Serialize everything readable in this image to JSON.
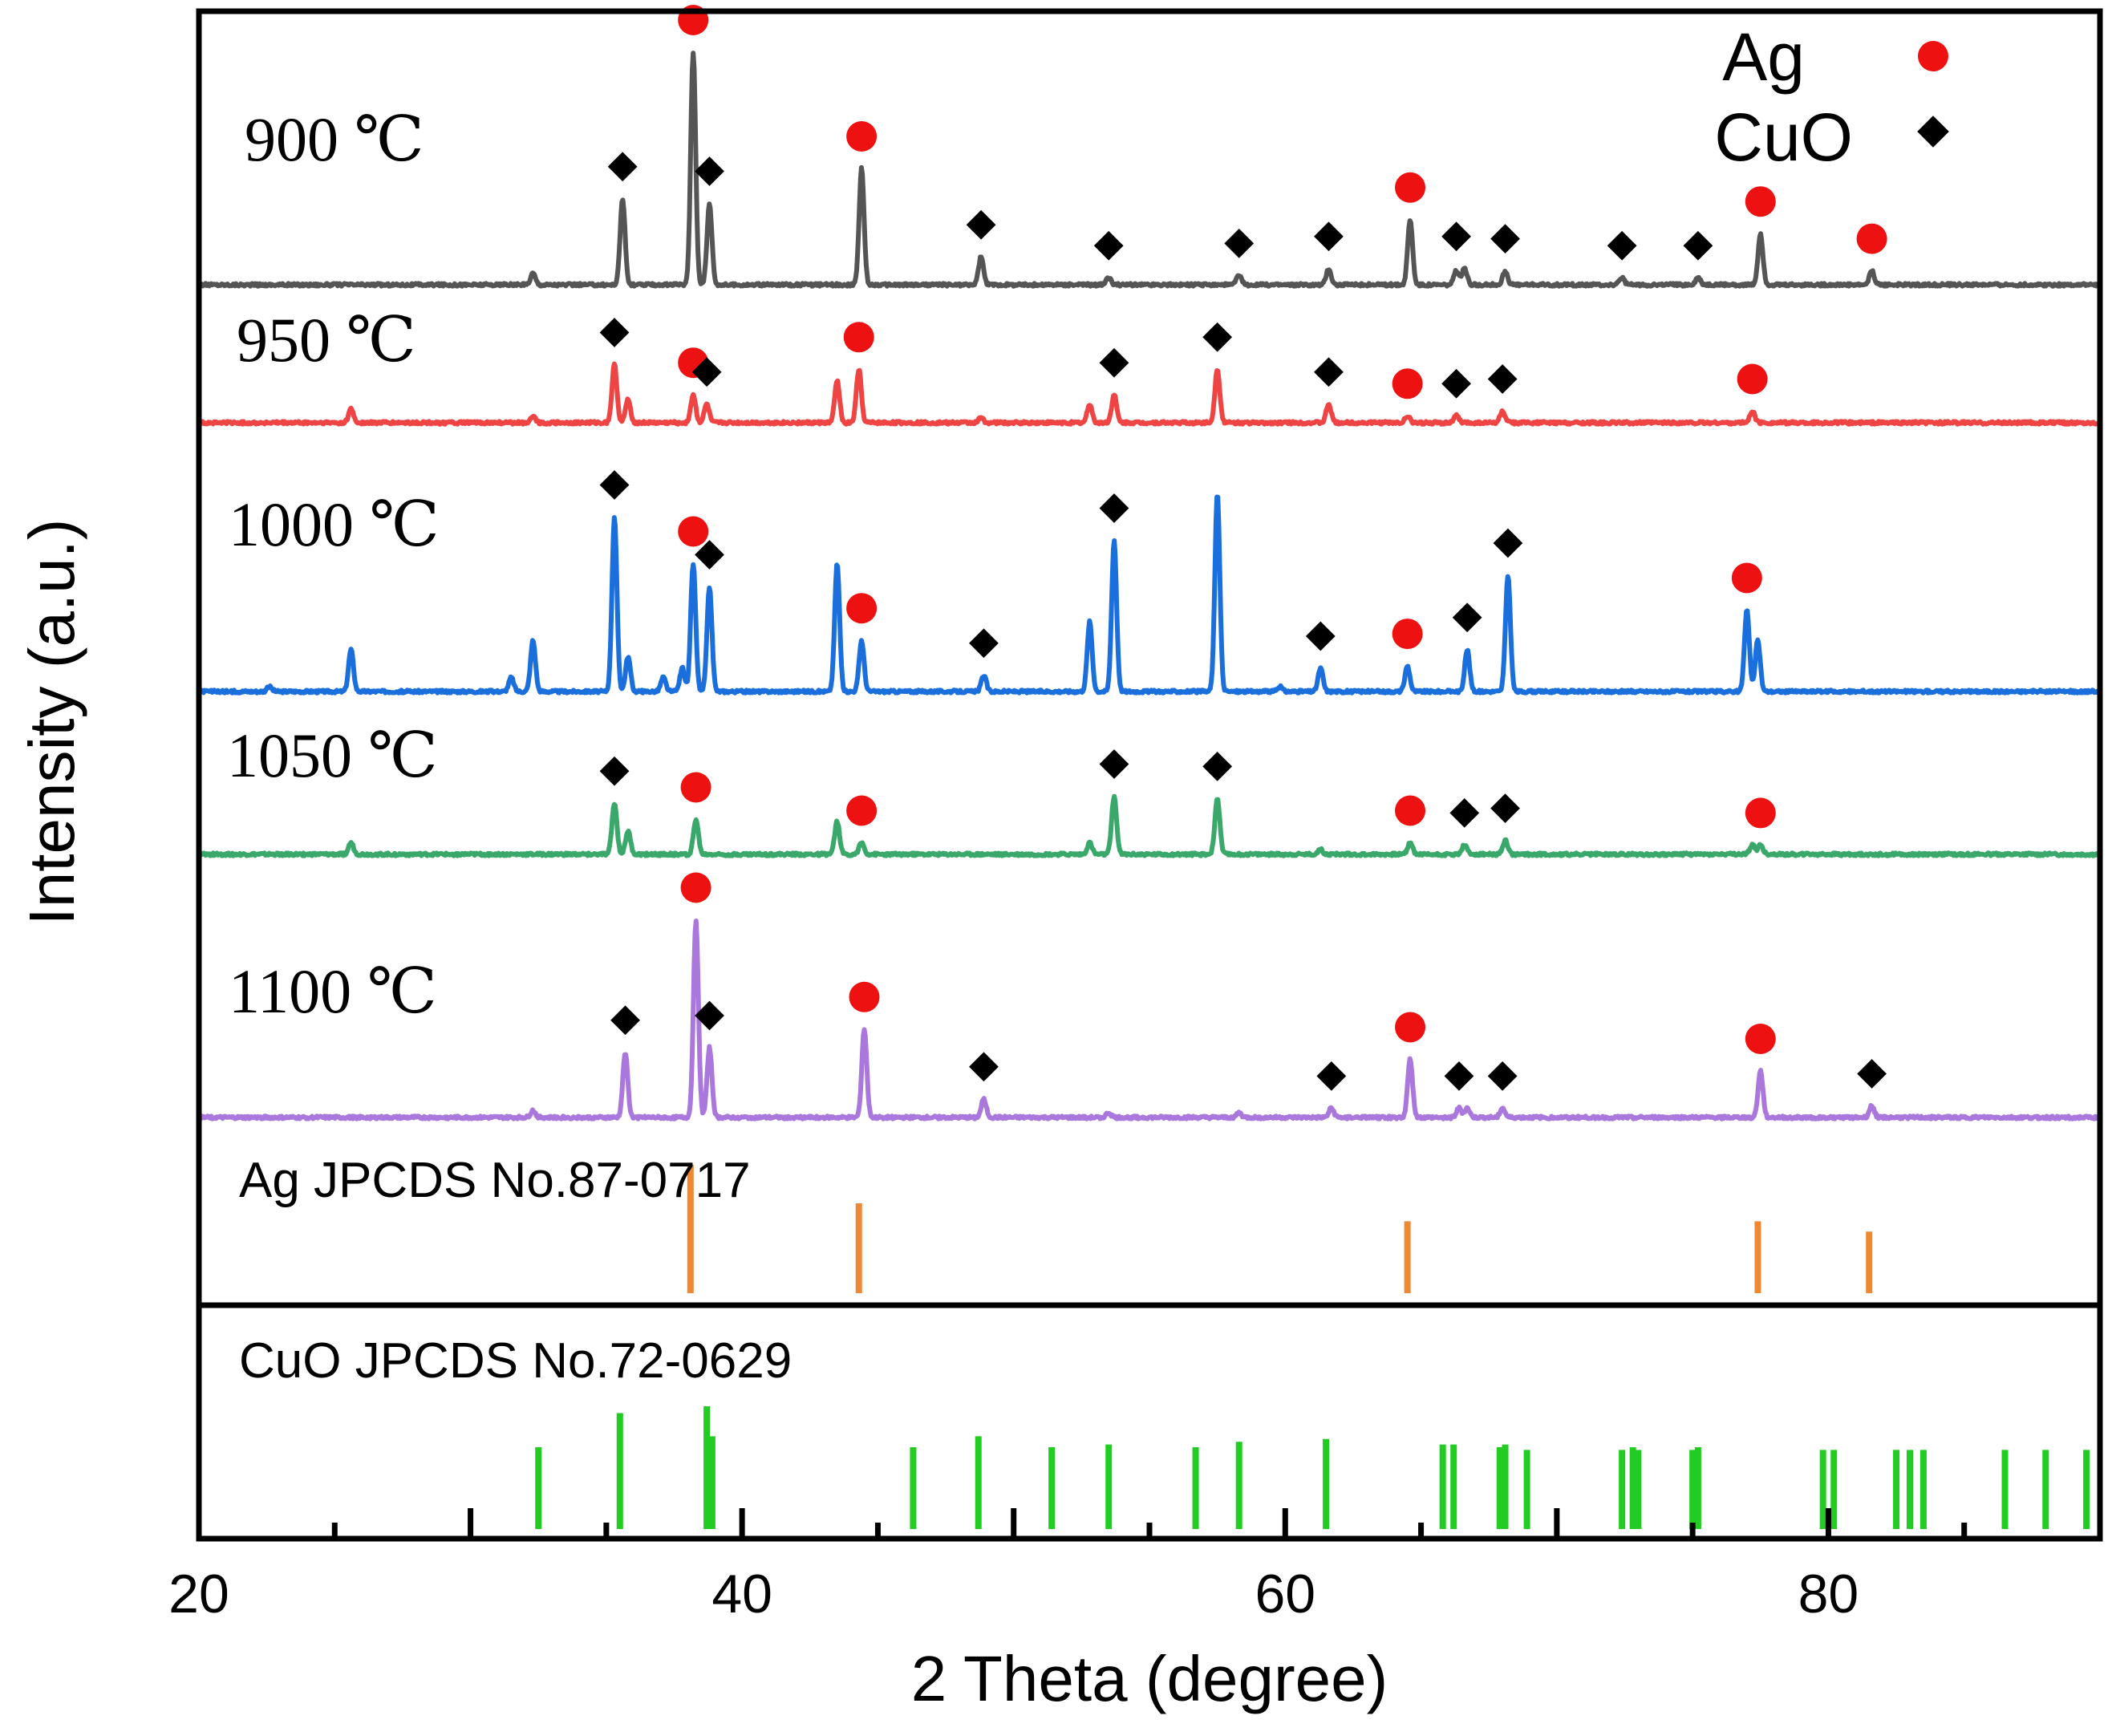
{
  "chart_data": {
    "type": "line",
    "title": "",
    "xlabel": "2 Theta (degree)",
    "ylabel": "Intensity (a.u.)",
    "xlim": [
      20,
      90
    ],
    "x_ticks": [
      20,
      40,
      60,
      80
    ],
    "x_tick_labels": [
      "20",
      "40",
      "60",
      "80"
    ],
    "legend": {
      "placement": "top-right",
      "entries": [
        {
          "label": "Ag",
          "marker": "circle",
          "color": "#ee1111"
        },
        {
          "label": "CuO",
          "marker": "diamond",
          "color": "#000000"
        }
      ]
    },
    "series": [
      {
        "name": "900 ℃",
        "color": "#555555",
        "baseline": 0.17,
        "peaks": [
          [
            32.3,
            0.05
          ],
          [
            35.6,
            0.37
          ],
          [
            38.2,
            1.0
          ],
          [
            38.8,
            0.35
          ],
          [
            44.4,
            0.5
          ],
          [
            48.8,
            0.12
          ],
          [
            53.5,
            0.03
          ],
          [
            58.3,
            0.04
          ],
          [
            61.6,
            0.07
          ],
          [
            64.6,
            0.28
          ],
          [
            66.3,
            0.06
          ],
          [
            66.6,
            0.07
          ],
          [
            68.1,
            0.06
          ],
          [
            72.4,
            0.03
          ],
          [
            75.2,
            0.03
          ],
          [
            77.5,
            0.22
          ],
          [
            81.6,
            0.06
          ]
        ],
        "ag_markers": [
          38.2,
          44.4,
          64.6,
          77.5,
          81.6
        ],
        "cuo_markers": [
          35.6,
          38.8,
          48.8,
          53.5,
          58.3,
          61.6,
          66.3,
          68.1,
          72.4,
          75.2
        ]
      },
      {
        "name": "950 ℃",
        "color": "#ee4444",
        "baseline": 0.17,
        "peaks": [
          [
            25.6,
            0.06
          ],
          [
            32.3,
            0.03
          ],
          [
            35.3,
            0.25
          ],
          [
            35.8,
            0.1
          ],
          [
            38.2,
            0.12
          ],
          [
            38.7,
            0.08
          ],
          [
            43.5,
            0.18
          ],
          [
            44.3,
            0.23
          ],
          [
            48.8,
            0.02
          ],
          [
            52.8,
            0.08
          ],
          [
            53.7,
            0.12
          ],
          [
            57.5,
            0.23
          ],
          [
            61.6,
            0.08
          ],
          [
            64.5,
            0.03
          ],
          [
            66.3,
            0.03
          ],
          [
            68.0,
            0.05
          ],
          [
            77.2,
            0.05
          ]
        ],
        "ag_markers": [
          38.2,
          44.3,
          64.5,
          77.2
        ],
        "cuo_markers": [
          35.3,
          38.7,
          53.7,
          57.5,
          61.6,
          66.3,
          68.0
        ]
      },
      {
        "name": "1000 ℃",
        "color": "#1a6fdc",
        "baseline": 0.17,
        "peaks": [
          [
            22.6,
            0.02
          ],
          [
            25.6,
            0.18
          ],
          [
            31.5,
            0.06
          ],
          [
            32.3,
            0.22
          ],
          [
            35.3,
            0.75
          ],
          [
            35.8,
            0.15
          ],
          [
            37.1,
            0.06
          ],
          [
            37.8,
            0.1
          ],
          [
            38.2,
            0.55
          ],
          [
            38.8,
            0.45
          ],
          [
            43.5,
            0.55
          ],
          [
            44.4,
            0.22
          ],
          [
            48.9,
            0.07
          ],
          [
            52.8,
            0.3
          ],
          [
            53.7,
            0.65
          ],
          [
            57.5,
            0.85
          ],
          [
            59.8,
            0.02
          ],
          [
            61.3,
            0.1
          ],
          [
            64.5,
            0.11
          ],
          [
            66.7,
            0.18
          ],
          [
            68.2,
            0.5
          ],
          [
            77.0,
            0.35
          ],
          [
            77.4,
            0.22
          ]
        ],
        "ag_markers": [
          38.2,
          44.4,
          64.5,
          77.0
        ],
        "cuo_markers": [
          35.3,
          38.8,
          48.9,
          53.7,
          61.3,
          66.7,
          68.2
        ]
      },
      {
        "name": "1050 ℃",
        "color": "#3aa86a",
        "baseline": 0.17,
        "peaks": [
          [
            25.6,
            0.05
          ],
          [
            35.3,
            0.22
          ],
          [
            35.8,
            0.1
          ],
          [
            38.3,
            0.15
          ],
          [
            43.5,
            0.14
          ],
          [
            44.4,
            0.05
          ],
          [
            52.8,
            0.05
          ],
          [
            53.7,
            0.25
          ],
          [
            57.5,
            0.24
          ],
          [
            61.3,
            0.02
          ],
          [
            64.6,
            0.05
          ],
          [
            66.6,
            0.04
          ],
          [
            68.1,
            0.06
          ],
          [
            77.2,
            0.04
          ],
          [
            77.5,
            0.04
          ]
        ],
        "ag_markers": [
          38.3,
          44.4,
          64.6,
          77.5
        ],
        "cuo_markers": [
          35.3,
          53.7,
          57.5,
          66.6,
          68.1
        ]
      },
      {
        "name": "1100 ℃",
        "color": "#aa77dd",
        "baseline": 0.17,
        "peaks": [
          [
            32.3,
            0.03
          ],
          [
            35.7,
            0.28
          ],
          [
            38.3,
            0.85
          ],
          [
            38.8,
            0.3
          ],
          [
            44.5,
            0.38
          ],
          [
            48.9,
            0.08
          ],
          [
            53.5,
            0.02
          ],
          [
            58.3,
            0.02
          ],
          [
            61.7,
            0.04
          ],
          [
            64.6,
            0.25
          ],
          [
            66.4,
            0.04
          ],
          [
            66.7,
            0.04
          ],
          [
            68.0,
            0.04
          ],
          [
            77.5,
            0.2
          ],
          [
            81.6,
            0.05
          ]
        ],
        "ag_markers": [
          38.3,
          44.5,
          64.6,
          77.5
        ],
        "cuo_markers": [
          35.7,
          38.8,
          48.9,
          61.7,
          66.4,
          68.0,
          81.6
        ]
      }
    ],
    "references": [
      {
        "name": "Ag JPCDS No.87-0717",
        "color": "#ee8833",
        "lines": [
          [
            38.1,
            1.0
          ],
          [
            44.3,
            0.7
          ],
          [
            64.5,
            0.56
          ],
          [
            77.4,
            0.56
          ],
          [
            81.5,
            0.48
          ]
        ]
      },
      {
        "name": "CuO JPCDS No.72-0629",
        "color": "#22cc22",
        "lines": [
          [
            32.5,
            0.6
          ],
          [
            35.5,
            0.85
          ],
          [
            38.7,
            0.9
          ],
          [
            38.9,
            0.68
          ],
          [
            46.3,
            0.6
          ],
          [
            48.7,
            0.68
          ],
          [
            51.4,
            0.6
          ],
          [
            53.5,
            0.62
          ],
          [
            56.7,
            0.6
          ],
          [
            58.3,
            0.64
          ],
          [
            61.5,
            0.66
          ],
          [
            65.8,
            0.62
          ],
          [
            66.2,
            0.62
          ],
          [
            67.9,
            0.6
          ],
          [
            68.1,
            0.62
          ],
          [
            68.9,
            0.58
          ],
          [
            72.4,
            0.58
          ],
          [
            72.8,
            0.6
          ],
          [
            73.0,
            0.58
          ],
          [
            75.0,
            0.58
          ],
          [
            75.2,
            0.6
          ],
          [
            79.8,
            0.58
          ],
          [
            80.2,
            0.58
          ],
          [
            82.5,
            0.58
          ],
          [
            83.0,
            0.58
          ],
          [
            83.5,
            0.58
          ],
          [
            86.5,
            0.58
          ],
          [
            88.0,
            0.58
          ],
          [
            89.5,
            0.58
          ]
        ]
      }
    ]
  }
}
